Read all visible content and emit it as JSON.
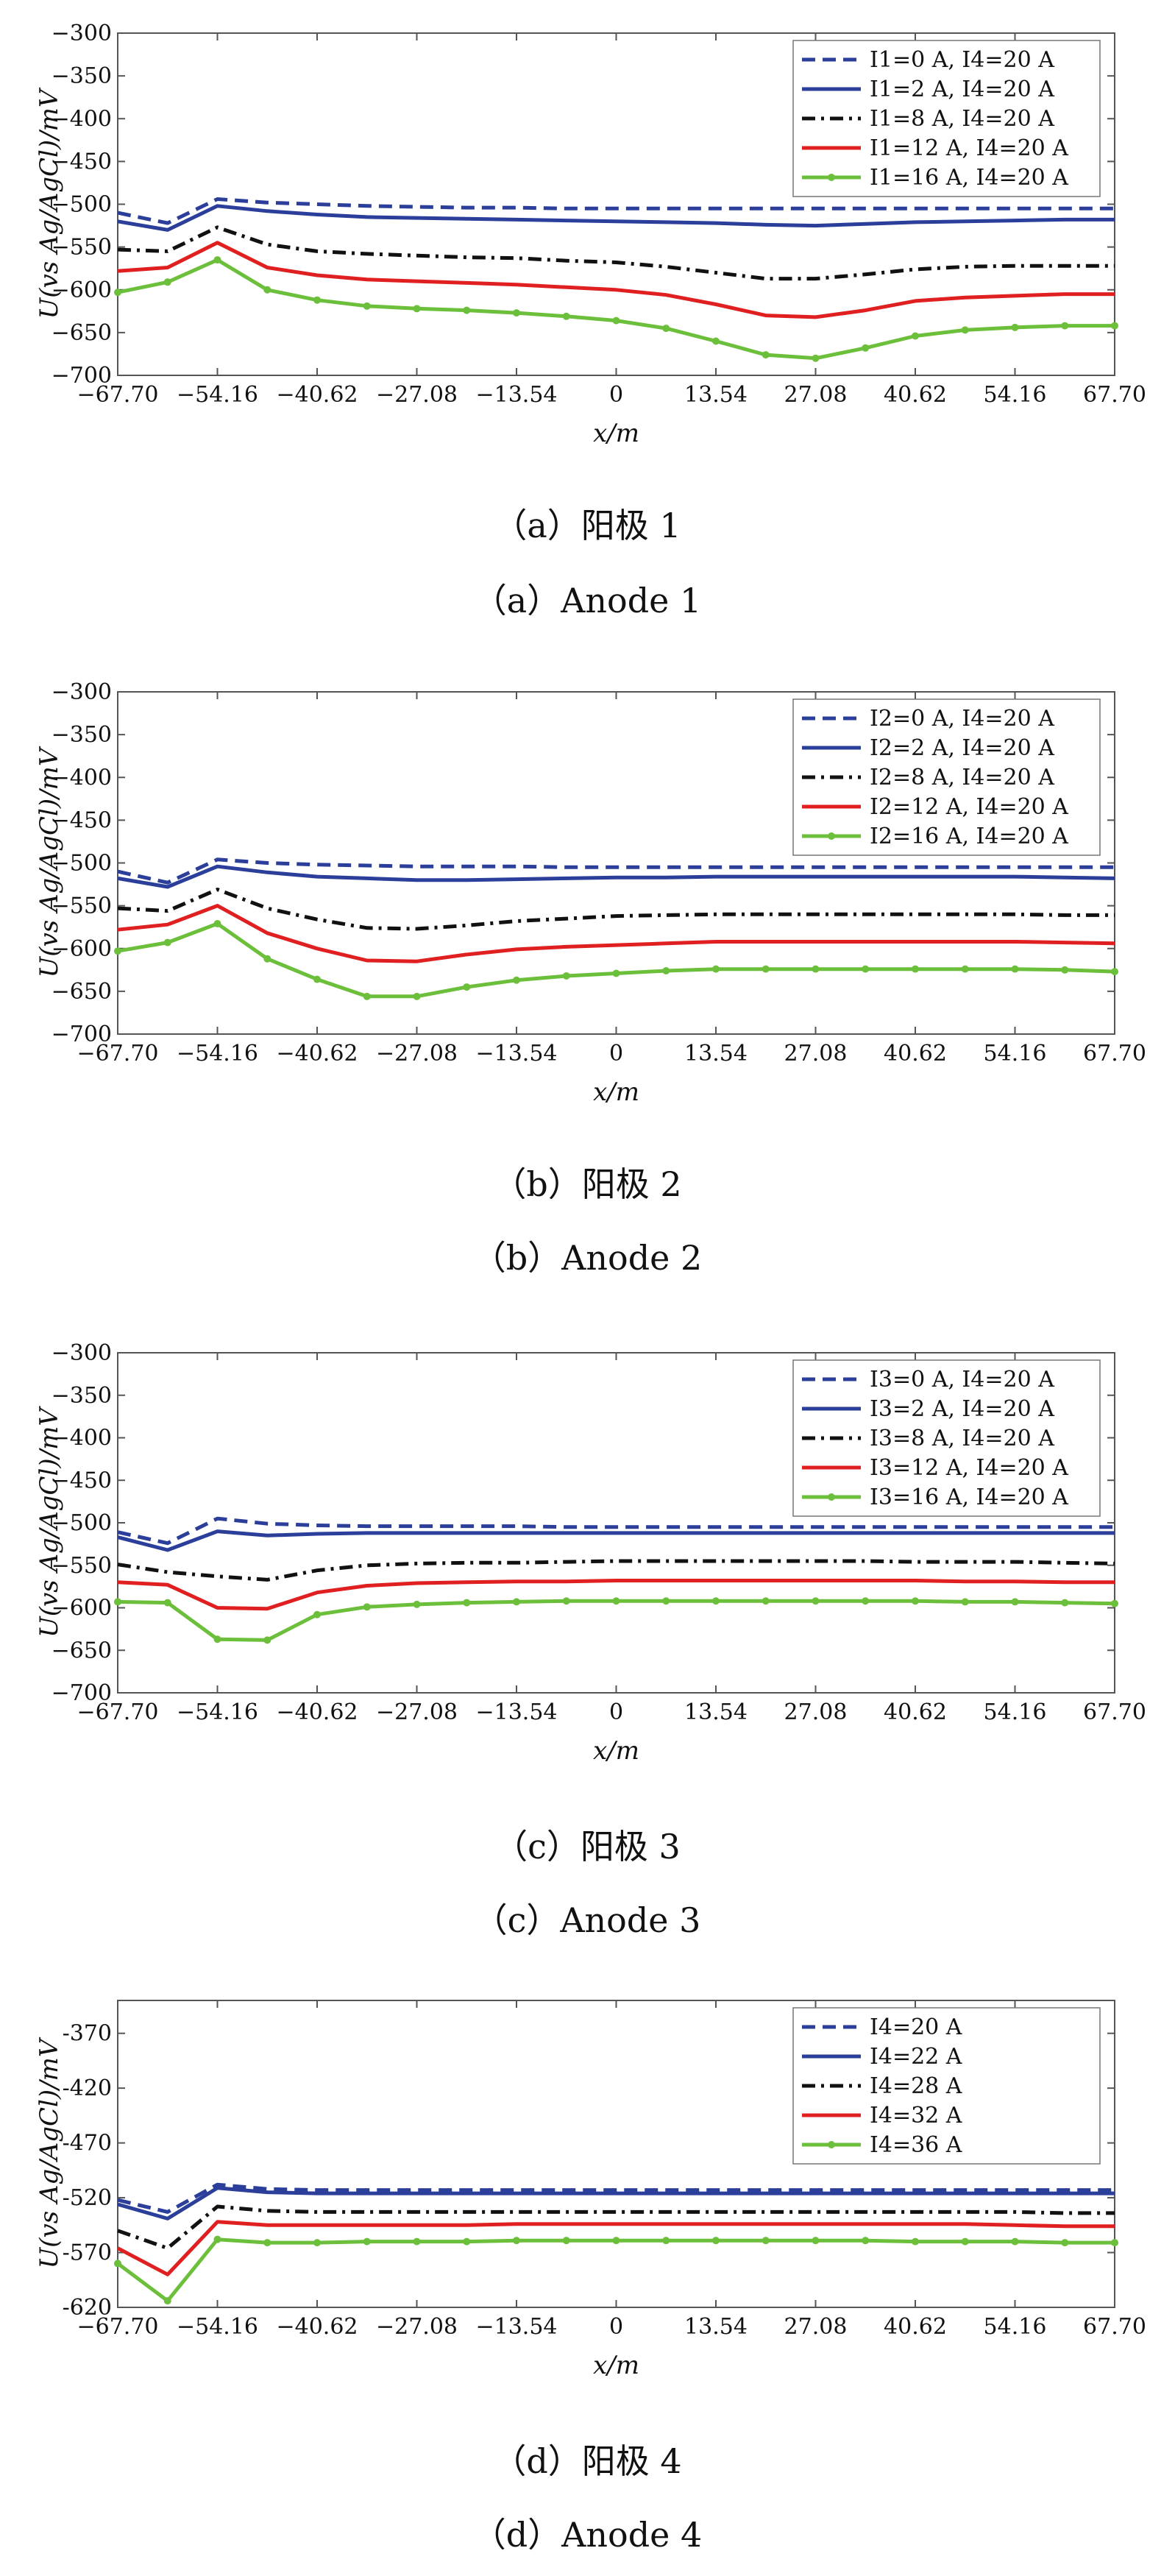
{
  "chart_data": [
    {
      "type": "line",
      "xlabel": "x/m",
      "ylabel": "U(vs Ag/AgCl)/mV",
      "xlim": [
        -67.7,
        67.7
      ],
      "ylim": [
        -700,
        -300
      ],
      "xticks": [
        "−67.70",
        "−54.16",
        "−40.62",
        "−27.08",
        "−13.54",
        "0",
        "13.54",
        "27.08",
        "40.62",
        "54.16",
        "67.70"
      ],
      "yticks": [
        "−300",
        "−350",
        "−400",
        "−450",
        "−500",
        "−550",
        "−600",
        "−650",
        "−700"
      ],
      "legend_position": "top-right",
      "caption_cn": "（a）阳极 1",
      "caption_en": "（a）Anode 1",
      "x": [
        -67.7,
        -60.93,
        -54.16,
        -47.39,
        -40.62,
        -33.85,
        -27.08,
        -20.31,
        -13.54,
        -6.77,
        0,
        6.77,
        13.54,
        20.31,
        27.08,
        33.85,
        40.62,
        47.39,
        54.16,
        60.93,
        67.7
      ],
      "series": [
        {
          "name": "I1=0 A, I4=20 A",
          "color": "#2b3f9a",
          "dash": "dashed",
          "values": [
            -510,
            -522,
            -494,
            -498,
            -500,
            -502,
            -503,
            -504,
            -504,
            -505,
            -505,
            -505,
            -505,
            -505,
            -505,
            -505,
            -505,
            -505,
            -505,
            -505,
            -505
          ]
        },
        {
          "name": "I1=2 A, I4=20 A",
          "color": "#2b3f9a",
          "dash": "solid",
          "values": [
            -520,
            -530,
            -502,
            -508,
            -512,
            -515,
            -516,
            -517,
            -518,
            -519,
            -520,
            -521,
            -522,
            -524,
            -525,
            -523,
            -521,
            -520,
            -519,
            -518,
            -518
          ]
        },
        {
          "name": "I1=8 A, I4=20 A",
          "color": "#111111",
          "dash": "dashdot",
          "values": [
            -553,
            -555,
            -527,
            -547,
            -555,
            -558,
            -560,
            -562,
            -563,
            -566,
            -568,
            -573,
            -580,
            -587,
            -587,
            -582,
            -576,
            -573,
            -572,
            -572,
            -572
          ]
        },
        {
          "name": "I1=12 A, I4=20 A",
          "color": "#e02020",
          "dash": "solid",
          "values": [
            -578,
            -574,
            -545,
            -574,
            -583,
            -588,
            -590,
            -592,
            -594,
            -597,
            -600,
            -606,
            -617,
            -630,
            -632,
            -624,
            -613,
            -609,
            -607,
            -605,
            -605
          ]
        },
        {
          "name": "I1=16 A, I4=20 A",
          "color": "#6cbf3a",
          "dash": "solid",
          "marker": true,
          "values": [
            -603,
            -591,
            -565,
            -600,
            -612,
            -619,
            -622,
            -624,
            -627,
            -631,
            -636,
            -645,
            -660,
            -676,
            -680,
            -668,
            -654,
            -647,
            -644,
            -642,
            -642
          ]
        }
      ]
    },
    {
      "type": "line",
      "xlabel": "x/m",
      "ylabel": "U(vs Ag/AgCl)/mV",
      "xlim": [
        -67.7,
        67.7
      ],
      "ylim": [
        -700,
        -300
      ],
      "xticks": [
        "−67.70",
        "−54.16",
        "−40.62",
        "−27.08",
        "−13.54",
        "0",
        "13.54",
        "27.08",
        "40.62",
        "54.16",
        "67.70"
      ],
      "yticks": [
        "−300",
        "−350",
        "−400",
        "−450",
        "−500",
        "−550",
        "−600",
        "−650",
        "−700"
      ],
      "legend_position": "top-right",
      "caption_cn": "（b）阳极 2",
      "caption_en": "（b）Anode 2",
      "x": [
        -67.7,
        -60.93,
        -54.16,
        -47.39,
        -40.62,
        -33.85,
        -27.08,
        -20.31,
        -13.54,
        -6.77,
        0,
        6.77,
        13.54,
        20.31,
        27.08,
        33.85,
        40.62,
        47.39,
        54.16,
        60.93,
        67.7
      ],
      "series": [
        {
          "name": "I2=0 A, I4=20 A",
          "color": "#2b3f9a",
          "dash": "dashed",
          "values": [
            -510,
            -523,
            -496,
            -500,
            -502,
            -503,
            -504,
            -504,
            -504,
            -505,
            -505,
            -505,
            -505,
            -505,
            -505,
            -505,
            -505,
            -505,
            -505,
            -505,
            -505
          ]
        },
        {
          "name": "I2=2 A, I4=20 A",
          "color": "#2b3f9a",
          "dash": "solid",
          "values": [
            -518,
            -528,
            -504,
            -511,
            -516,
            -518,
            -520,
            -520,
            -519,
            -518,
            -517,
            -517,
            -516,
            -516,
            -516,
            -516,
            -516,
            -516,
            -516,
            -517,
            -518
          ]
        },
        {
          "name": "I2=8 A, I4=20 A",
          "color": "#111111",
          "dash": "dashdot",
          "values": [
            -553,
            -556,
            -531,
            -553,
            -566,
            -576,
            -577,
            -573,
            -568,
            -565,
            -562,
            -561,
            -560,
            -560,
            -560,
            -560,
            -560,
            -560,
            -560,
            -561,
            -561
          ]
        },
        {
          "name": "I2=12 A, I4=20 A",
          "color": "#e02020",
          "dash": "solid",
          "values": [
            -578,
            -572,
            -550,
            -582,
            -600,
            -614,
            -615,
            -607,
            -601,
            -598,
            -596,
            -594,
            -592,
            -592,
            -592,
            -592,
            -592,
            -592,
            -592,
            -593,
            -594
          ]
        },
        {
          "name": "I2=16 A, I4=20 A",
          "color": "#6cbf3a",
          "dash": "solid",
          "marker": true,
          "values": [
            -603,
            -593,
            -571,
            -612,
            -636,
            -656,
            -656,
            -645,
            -637,
            -632,
            -629,
            -626,
            -624,
            -624,
            -624,
            -624,
            -624,
            -624,
            -624,
            -625,
            -627
          ]
        }
      ]
    },
    {
      "type": "line",
      "xlabel": "x/m",
      "ylabel": "U(vs Ag/AgCl)/mV",
      "xlim": [
        -67.7,
        67.7
      ],
      "ylim": [
        -700,
        -300
      ],
      "xticks": [
        "−67.70",
        "−54.16",
        "−40.62",
        "−27.08",
        "−13.54",
        "0",
        "13.54",
        "27.08",
        "40.62",
        "54.16",
        "67.70"
      ],
      "yticks": [
        "−300",
        "−350",
        "−400",
        "−450",
        "−500",
        "−550",
        "−600",
        "−650",
        "−700"
      ],
      "legend_position": "top-right",
      "caption_cn": "（c）阳极 3",
      "caption_en": "（c）Anode 3",
      "x": [
        -67.7,
        -60.93,
        -54.16,
        -47.39,
        -40.62,
        -33.85,
        -27.08,
        -20.31,
        -13.54,
        -6.77,
        0,
        6.77,
        13.54,
        20.31,
        27.08,
        33.85,
        40.62,
        47.39,
        54.16,
        60.93,
        67.7
      ],
      "series": [
        {
          "name": "I3=0 A, I4=20 A",
          "color": "#2b3f9a",
          "dash": "dashed",
          "values": [
            -511,
            -524,
            -495,
            -501,
            -503,
            -504,
            -504,
            -504,
            -504,
            -505,
            -505,
            -505,
            -505,
            -505,
            -505,
            -505,
            -505,
            -505,
            -505,
            -505,
            -505
          ]
        },
        {
          "name": "I3=2 A, I4=20 A",
          "color": "#2b3f9a",
          "dash": "solid",
          "values": [
            -517,
            -532,
            -510,
            -515,
            -513,
            -512,
            -512,
            -512,
            -512,
            -512,
            -512,
            -512,
            -512,
            -512,
            -512,
            -512,
            -512,
            -512,
            -512,
            -512,
            -512
          ]
        },
        {
          "name": "I3=8 A, I4=20 A",
          "color": "#111111",
          "dash": "dashdot",
          "values": [
            -549,
            -558,
            -563,
            -567,
            -556,
            -550,
            -548,
            -547,
            -547,
            -546,
            -545,
            -545,
            -545,
            -545,
            -545,
            -545,
            -546,
            -546,
            -546,
            -547,
            -548
          ]
        },
        {
          "name": "I3=12 A, I4=20 A",
          "color": "#e02020",
          "dash": "solid",
          "values": [
            -570,
            -573,
            -600,
            -601,
            -582,
            -574,
            -571,
            -570,
            -569,
            -569,
            -568,
            -568,
            -568,
            -568,
            -568,
            -568,
            -568,
            -569,
            -569,
            -570,
            -570
          ]
        },
        {
          "name": "I3=16 A, I4=20 A",
          "color": "#6cbf3a",
          "dash": "solid",
          "marker": true,
          "values": [
            -593,
            -594,
            -637,
            -638,
            -608,
            -599,
            -596,
            -594,
            -593,
            -592,
            -592,
            -592,
            -592,
            -592,
            -592,
            -592,
            -592,
            -593,
            -593,
            -594,
            -595
          ]
        }
      ]
    },
    {
      "type": "line",
      "xlabel": "x/m",
      "ylabel": "U(vs Ag/AgCl)/mV",
      "xlim": [
        -67.7,
        67.7
      ],
      "ylim": [
        -620,
        -340
      ],
      "xticks": [
        "−67.70",
        "−54.16",
        "−40.62",
        "−27.08",
        "−13.54",
        "0",
        "13.54",
        "27.08",
        "40.62",
        "54.16",
        "67.70"
      ],
      "yticks": [
        "-370",
        "-420",
        "-470",
        "-520",
        "-570",
        "-620"
      ],
      "legend_position": "top-right",
      "caption_cn": "（d）阳极 4",
      "caption_en": "（d）Anode 4",
      "x": [
        -67.7,
        -60.93,
        -54.16,
        -47.39,
        -40.62,
        -33.85,
        -27.08,
        -20.31,
        -13.54,
        -6.77,
        0,
        6.77,
        13.54,
        20.31,
        27.08,
        33.85,
        40.62,
        47.39,
        54.16,
        60.93,
        67.7
      ],
      "series": [
        {
          "name": "I4=20 A",
          "color": "#2b3f9a",
          "dash": "dashed",
          "values": [
            -522,
            -533,
            -508,
            -512,
            -513,
            -513,
            -513,
            -513,
            -513,
            -513,
            -513,
            -513,
            -513,
            -513,
            -513,
            -513,
            -513,
            -513,
            -513,
            -513,
            -513
          ]
        },
        {
          "name": "I4=22 A",
          "color": "#2b3f9a",
          "dash": "solid",
          "values": [
            -526,
            -539,
            -511,
            -515,
            -516,
            -516,
            -516,
            -516,
            -516,
            -516,
            -516,
            -516,
            -516,
            -516,
            -516,
            -516,
            -516,
            -516,
            -516,
            -516,
            -516
          ]
        },
        {
          "name": "I4=28 A",
          "color": "#111111",
          "dash": "dashdot",
          "values": [
            -550,
            -566,
            -528,
            -532,
            -533,
            -533,
            -533,
            -533,
            -533,
            -533,
            -533,
            -533,
            -533,
            -533,
            -533,
            -533,
            -533,
            -533,
            -533,
            -534,
            -534
          ]
        },
        {
          "name": "I4=32 A",
          "color": "#e02020",
          "dash": "solid",
          "values": [
            -566,
            -590,
            -542,
            -545,
            -545,
            -545,
            -545,
            -545,
            -544,
            -544,
            -544,
            -544,
            -544,
            -544,
            -544,
            -544,
            -544,
            -544,
            -545,
            -546,
            -546
          ]
        },
        {
          "name": "I4=36 A",
          "color": "#6cbf3a",
          "dash": "solid",
          "marker": true,
          "values": [
            -580,
            -614,
            -558,
            -561,
            -561,
            -560,
            -560,
            -560,
            -559,
            -559,
            -559,
            -559,
            -559,
            -559,
            -559,
            -559,
            -560,
            -560,
            -560,
            -561,
            -561
          ]
        }
      ]
    }
  ]
}
